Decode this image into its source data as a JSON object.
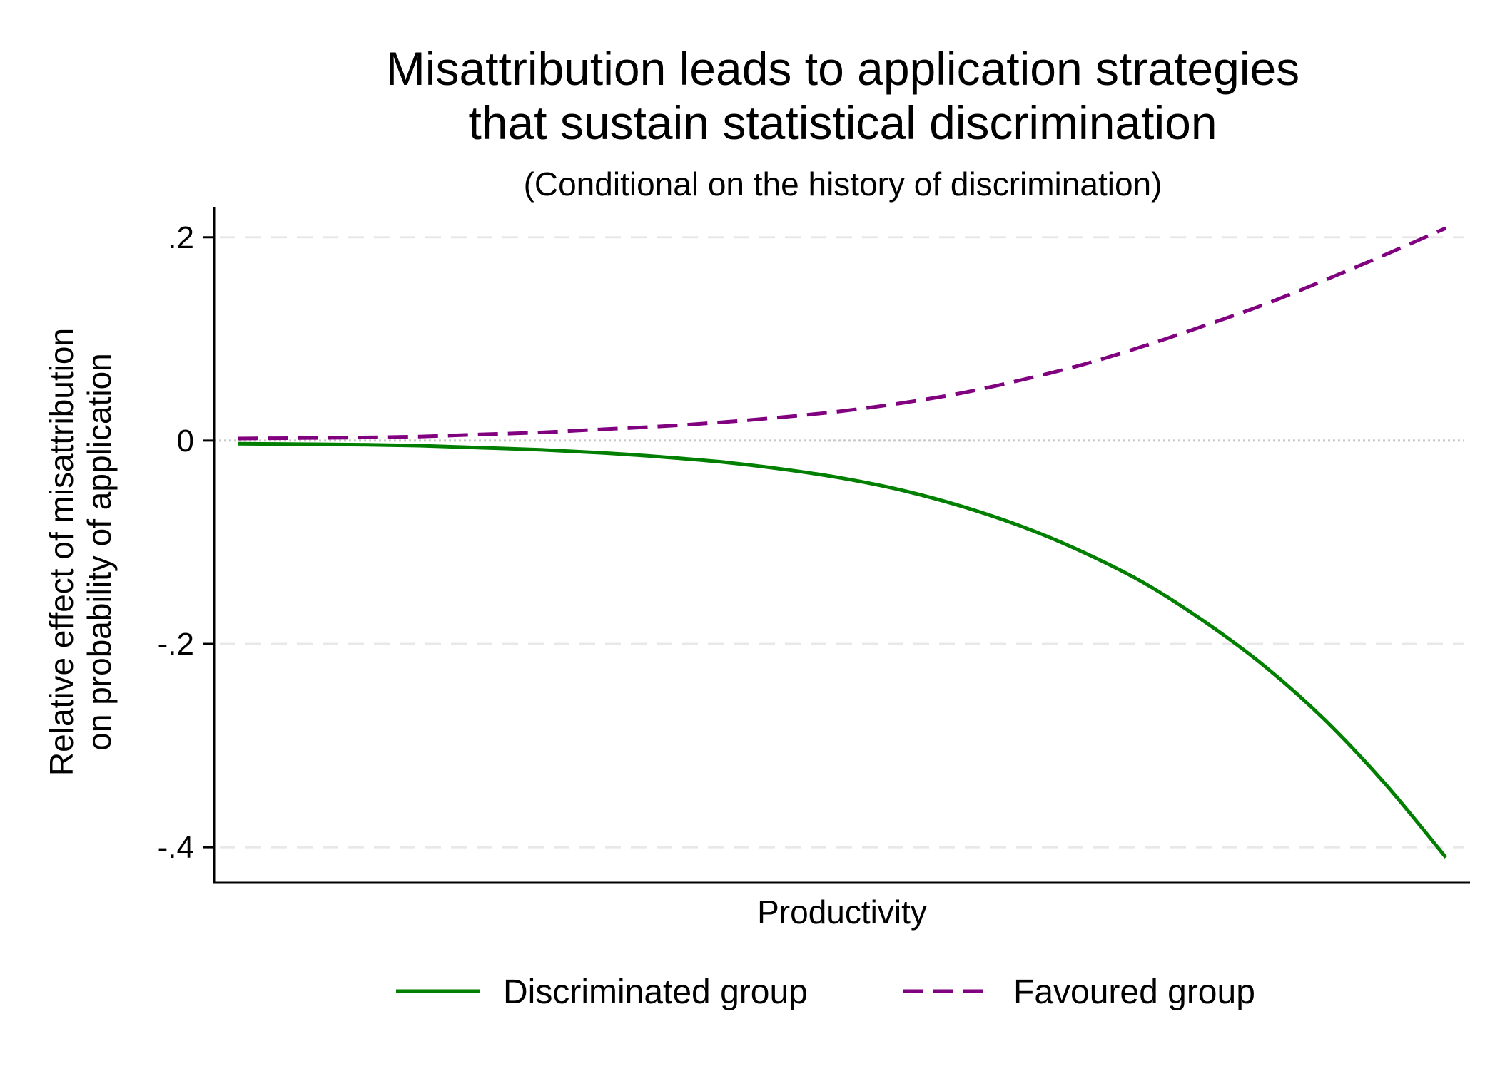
{
  "chart_data": {
    "type": "line",
    "title_lines": [
      "Misattribution leads to application strategies",
      "that sustain statistical discrimination"
    ],
    "subtitle": "(Conditional on the history of discrimination)",
    "xlabel": "Productivity",
    "ylabel_lines": [
      "Relative effect of misattribution",
      "on probability of application"
    ],
    "ylim": [
      -0.435,
      0.23
    ],
    "xlim": [
      -0.02,
      1.02
    ],
    "yticks": [
      {
        "value": 0.2,
        "label": ".2"
      },
      {
        "value": 0,
        "label": "0"
      },
      {
        "value": -0.2,
        "label": "-.2"
      },
      {
        "value": -0.4,
        "label": "-.4"
      }
    ],
    "grid": true,
    "reference_line_y": 0,
    "legend_position": "bottom",
    "series": [
      {
        "name": "Discriminated group",
        "color": "#007f00",
        "style": "solid",
        "x": [
          0,
          0.05,
          0.1,
          0.15,
          0.2,
          0.25,
          0.3,
          0.35,
          0.4,
          0.45,
          0.5,
          0.55,
          0.6,
          0.65,
          0.7,
          0.75,
          0.8,
          0.85,
          0.9,
          0.95,
          1.0
        ],
        "y": [
          -0.003,
          -0.0035,
          -0.004,
          -0.005,
          -0.007,
          -0.009,
          -0.012,
          -0.016,
          -0.021,
          -0.028,
          -0.037,
          -0.049,
          -0.065,
          -0.085,
          -0.11,
          -0.14,
          -0.178,
          -0.222,
          -0.275,
          -0.338,
          -0.41
        ]
      },
      {
        "name": "Favoured group",
        "color": "#800080",
        "style": "dashed",
        "x": [
          0,
          0.05,
          0.1,
          0.15,
          0.2,
          0.25,
          0.3,
          0.35,
          0.4,
          0.45,
          0.5,
          0.55,
          0.6,
          0.65,
          0.7,
          0.75,
          0.8,
          0.85,
          0.9,
          0.95,
          1.0
        ],
        "y": [
          0.002,
          0.0025,
          0.003,
          0.004,
          0.006,
          0.008,
          0.011,
          0.014,
          0.018,
          0.023,
          0.029,
          0.037,
          0.047,
          0.06,
          0.075,
          0.093,
          0.113,
          0.134,
          0.158,
          0.183,
          0.209
        ]
      }
    ]
  }
}
